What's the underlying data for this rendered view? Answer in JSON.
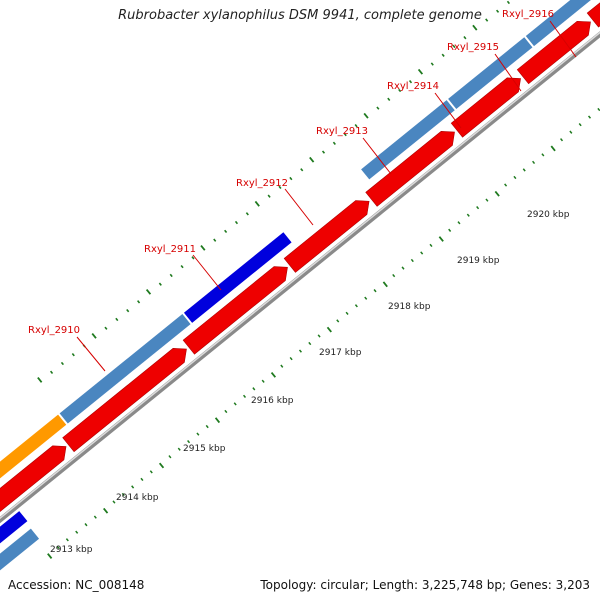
{
  "title": "Rubrobacter xylanophilus DSM 9941, complete genome",
  "footer": {
    "accession": "Accession: NC_008148",
    "summary": "Topology: circular; Length: 3,225,748 bp; Genes: 3,203"
  },
  "genes": [
    {
      "label": "Rxyl_2910",
      "color": "#d60000"
    },
    {
      "label": "Rxyl_2911",
      "color": "#d60000"
    },
    {
      "label": "Rxyl_2912",
      "color": "#d60000"
    },
    {
      "label": "Rxyl_2913",
      "color": "#d60000"
    },
    {
      "label": "Rxyl_2914",
      "color": "#d60000"
    },
    {
      "label": "Rxyl_2915",
      "color": "#d60000"
    },
    {
      "label": "Rxyl_2916",
      "color": "#d60000"
    }
  ],
  "scale_labels": [
    "2913 kbp",
    "2914 kbp",
    "2915 kbp",
    "2916 kbp",
    "2917 kbp",
    "2918 kbp",
    "2919 kbp",
    "2920 kbp"
  ],
  "colors": {
    "forward_steelblue": "#4a86c0",
    "forward_blue": "#0000dd",
    "forward_orange": "#ff9900",
    "forward_gray": "#c8c8c8",
    "reverse_red": "#ee0000",
    "backbone": "#9a9a9a",
    "tick": "#1f7a1f",
    "label": "#d60000"
  }
}
